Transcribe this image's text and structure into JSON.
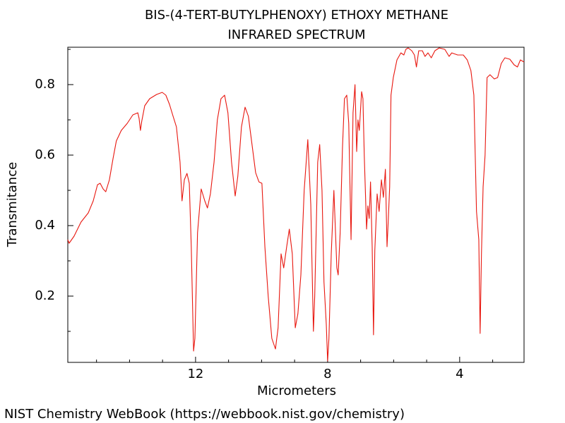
{
  "chart_data": {
    "type": "line",
    "title": "BIS-(4-TERT-BUTYLPHENOXY) ETHOXY METHANE",
    "subtitle": "INFRARED SPECTRUM",
    "x_label": "Micrometers",
    "y_label": "Transmitance",
    "source": "NIST Chemistry WebBook (https://webbook.nist.gov/chemistry)",
    "xlim": [
      15.87,
      2.05
    ],
    "ylim": [
      0.012,
      0.906
    ],
    "xticks": [
      12,
      8,
      4
    ],
    "yticks": [
      0.2,
      0.4,
      0.6,
      0.8
    ],
    "xminorticks": [
      15,
      14,
      13,
      11,
      10,
      9,
      7,
      6,
      5,
      3
    ],
    "yminorticks": [
      0.1,
      0.3,
      0.5,
      0.7,
      0.9
    ],
    "x": [
      15.87,
      15.83,
      15.68,
      15.47,
      15.25,
      15.1,
      14.97,
      14.89,
      14.8,
      14.72,
      14.61,
      14.5,
      14.4,
      14.25,
      14.07,
      13.9,
      13.75,
      13.71,
      13.67,
      13.63,
      13.54,
      13.39,
      13.18,
      13.01,
      12.9,
      12.79,
      12.68,
      12.58,
      12.47,
      12.41,
      12.34,
      12.26,
      12.19,
      12.13,
      12.06,
      12.02,
      11.94,
      11.83,
      11.72,
      11.64,
      11.55,
      11.44,
      11.34,
      11.23,
      11.12,
      11.02,
      10.91,
      10.8,
      10.72,
      10.61,
      10.5,
      10.4,
      10.29,
      10.18,
      10.08,
      9.99,
      9.9,
      9.8,
      9.69,
      9.58,
      9.5,
      9.41,
      9.33,
      9.24,
      9.16,
      9.07,
      8.98,
      8.9,
      8.81,
      8.71,
      8.6,
      8.51,
      8.43,
      8.39,
      8.3,
      8.24,
      8.17,
      8.11,
      8.04,
      8.0,
      7.96,
      7.89,
      7.81,
      7.72,
      7.68,
      7.62,
      7.55,
      7.49,
      7.42,
      7.36,
      7.29,
      7.23,
      7.17,
      7.12,
      7.08,
      7.04,
      6.97,
      6.93,
      6.89,
      6.82,
      6.78,
      6.74,
      6.7,
      6.65,
      6.61,
      6.57,
      6.5,
      6.44,
      6.37,
      6.31,
      6.25,
      6.2,
      6.16,
      6.12,
      6.08,
      6.01,
      5.9,
      5.78,
      5.69,
      5.63,
      5.56,
      5.45,
      5.37,
      5.31,
      5.24,
      5.13,
      5.05,
      4.96,
      4.86,
      4.75,
      4.62,
      4.45,
      4.32,
      4.24,
      4.06,
      3.89,
      3.77,
      3.66,
      3.57,
      3.49,
      3.42,
      3.38,
      3.34,
      3.29,
      3.23,
      3.17,
      3.08,
      2.95,
      2.85,
      2.74,
      2.63,
      2.48,
      2.35,
      2.25,
      2.16,
      2.05
    ],
    "series": [
      {
        "name": "Transmitance",
        "color": "#e8170f",
        "values": [
          0.36,
          0.35,
          0.37,
          0.41,
          0.436,
          0.47,
          0.516,
          0.52,
          0.504,
          0.496,
          0.53,
          0.59,
          0.64,
          0.67,
          0.69,
          0.714,
          0.72,
          0.704,
          0.67,
          0.696,
          0.74,
          0.76,
          0.772,
          0.778,
          0.77,
          0.744,
          0.71,
          0.68,
          0.58,
          0.47,
          0.53,
          0.548,
          0.52,
          0.34,
          0.044,
          0.08,
          0.38,
          0.504,
          0.47,
          0.45,
          0.49,
          0.58,
          0.7,
          0.76,
          0.77,
          0.72,
          0.58,
          0.484,
          0.54,
          0.68,
          0.736,
          0.71,
          0.63,
          0.55,
          0.524,
          0.52,
          0.34,
          0.2,
          0.08,
          0.05,
          0.11,
          0.32,
          0.28,
          0.34,
          0.39,
          0.32,
          0.11,
          0.15,
          0.26,
          0.5,
          0.644,
          0.46,
          0.1,
          0.2,
          0.58,
          0.63,
          0.5,
          0.24,
          0.12,
          0.016,
          0.08,
          0.32,
          0.5,
          0.28,
          0.26,
          0.38,
          0.62,
          0.76,
          0.77,
          0.69,
          0.36,
          0.72,
          0.8,
          0.61,
          0.7,
          0.67,
          0.78,
          0.76,
          0.6,
          0.39,
          0.456,
          0.42,
          0.524,
          0.34,
          0.09,
          0.33,
          0.49,
          0.44,
          0.53,
          0.48,
          0.56,
          0.34,
          0.42,
          0.51,
          0.77,
          0.82,
          0.87,
          0.89,
          0.884,
          0.9,
          0.904,
          0.896,
          0.884,
          0.85,
          0.896,
          0.896,
          0.88,
          0.89,
          0.876,
          0.896,
          0.904,
          0.9,
          0.88,
          0.89,
          0.884,
          0.884,
          0.87,
          0.84,
          0.77,
          0.44,
          0.36,
          0.094,
          0.32,
          0.51,
          0.6,
          0.82,
          0.828,
          0.816,
          0.82,
          0.86,
          0.876,
          0.872,
          0.856,
          0.85,
          0.87,
          0.864
        ]
      }
    ]
  }
}
